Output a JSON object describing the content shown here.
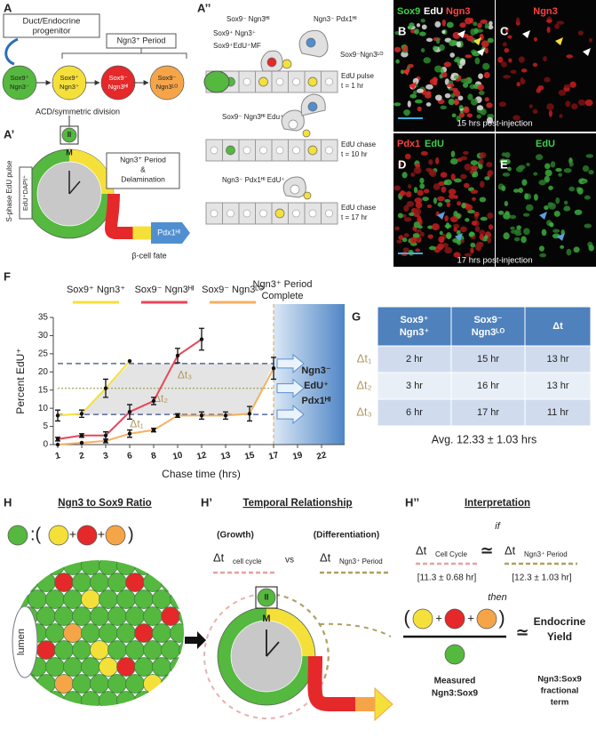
{
  "panel_labels": {
    "A": "A",
    "A1": "A’",
    "A2": "A’’",
    "B": "B",
    "C": "C",
    "D": "D",
    "E": "E",
    "F": "F",
    "G": "G",
    "H": "H",
    "H1": "H’",
    "H2": "H’’"
  },
  "panel_A": {
    "progenitor": [
      "Duct/Endocrine",
      "progenitor"
    ],
    "period": "Ngn3⁺ Period",
    "cells": [
      [
        "Sox9⁺",
        "Ngn3⁻"
      ],
      [
        "Sox9⁺",
        "Ngn3⁺"
      ],
      [
        "Sox9⁻",
        "Ngn3ᴴᴵ"
      ],
      [
        "Sox9⁻",
        "Ngn3ᴸᴼ"
      ]
    ]
  },
  "panel_A1": {
    "division": "ACD/symmetric division",
    "phase_II": "II",
    "phase_M": "M",
    "pulse": "S-phase EdU pulse",
    "stain": "EdU⁺DAPI⁺",
    "box": [
      "Ngn3⁺ Period",
      "&",
      "Delamination"
    ],
    "fate_marker": "Pdx1ᴴᴵ",
    "fate": "β-cell fate"
  },
  "panel_A2": {
    "labels": [
      "Sox9⁻ Ngn3ᴴᴵ",
      "Ngn3⁻ Pdx1ᴴᴵ",
      "Sox9⁺ Ngn3⁺",
      "Sox9⁺EdU⁺MF",
      "Sox9⁻Ngn3ᴸᴼ",
      "Sox9⁻ Ngn3ᴴᴵ Edu⁺",
      "Ngn3⁻ Pdx1ᴴᴵ EdU⁺"
    ],
    "rows": [
      [
        "EdU pulse",
        "t = 1 hr"
      ],
      [
        "EdU chase",
        "t = 10 hr"
      ],
      [
        "EdU chase",
        "t = 17 hr"
      ]
    ]
  },
  "panel_B": {
    "stains": [
      "Sox9",
      "EdU",
      "Ngn3"
    ],
    "time": "15 hrs post-injection"
  },
  "panel_C": {
    "stains": [
      "Ngn3"
    ]
  },
  "panel_D": {
    "stains": [
      "Pdx1",
      "EdU"
    ],
    "time": "17 hrs post-injection"
  },
  "panel_E": {
    "stains": [
      "EdU"
    ]
  },
  "chart_data": {
    "type": "line",
    "x_label": "Chase time (hrs)",
    "y_label": "Percent EdU⁺",
    "categories": [
      "1",
      "2",
      "3",
      "6",
      "8",
      "10",
      "12",
      "13",
      "15",
      "17",
      "19",
      "22"
    ],
    "ylim": [
      0,
      35
    ],
    "yticks": [
      0,
      5,
      10,
      15,
      20,
      25,
      30,
      35
    ],
    "series": [
      {
        "name": "Sox9⁺ Ngn3⁺",
        "color": "#f5e03a",
        "values": [
          8,
          8.5,
          15.5,
          23,
          null,
          null,
          null,
          null,
          null,
          null,
          null,
          null
        ],
        "errors": [
          1.5,
          1,
          2.5,
          null,
          null,
          null,
          null,
          null,
          null,
          null,
          null,
          null
        ]
      },
      {
        "name": "Sox9⁻ Ngn3ᴴᴵ",
        "color": "#e8465a",
        "values": [
          1.5,
          2.5,
          2.5,
          9,
          12,
          24.5,
          29,
          null,
          null,
          null,
          null,
          null
        ],
        "errors": [
          0.5,
          0.5,
          1,
          2,
          1,
          2,
          3,
          null,
          null,
          null,
          null,
          null
        ]
      },
      {
        "name": "Sox9⁻ Ngn3ᴸᴼ",
        "color": "#f5b060",
        "values": [
          0,
          0.5,
          1,
          3,
          4,
          8,
          8,
          8,
          8.5,
          21,
          null,
          null
        ],
        "errors": [
          null,
          null,
          0.5,
          1,
          0.5,
          0.5,
          1,
          1,
          2,
          3,
          null,
          null
        ]
      }
    ],
    "reference_lines": [
      {
        "value": 22.3,
        "color": "#3a4a8a"
      },
      {
        "value": 15.5,
        "color": "#9a9a50"
      },
      {
        "value": 8.3,
        "color": "#3a4a8a"
      }
    ],
    "annotations": [
      "Δt₃",
      "Δt₂",
      "Δt₁"
    ],
    "period_complete": {
      "text": [
        "Ngn3⁺ Period",
        "Complete"
      ],
      "x": "17",
      "outcome": [
        "Ngn3⁻",
        "EdU⁺",
        "Pdx1ᴴᴵ"
      ]
    }
  },
  "table": {
    "header": [
      [
        "Sox9⁺",
        "Ngn3⁺"
      ],
      [
        "Sox9⁻",
        "Ngn3ᴸᴼ"
      ],
      [
        "Δt"
      ]
    ],
    "rows": [
      [
        "Δt₁",
        "2 hr",
        "15 hr",
        "13 hr"
      ],
      [
        "Δt₂",
        "3 hr",
        "16 hr",
        "13 hr"
      ],
      [
        "Δt₃",
        "6 hr",
        "17 hr",
        "11 hr"
      ]
    ],
    "average": "Avg. 12.33 ± 1.03 hrs"
  },
  "panel_H": {
    "title": "Ngn3 to Sox9 Ratio",
    "symbols": [
      ":(",
      "+",
      "+",
      ")"
    ],
    "lumen": "lumen"
  },
  "panel_H1": {
    "title": "Temporal Relationship",
    "growth": "(Growth)",
    "differentiation": "(Differentiation)",
    "delta": [
      "Δt",
      "Δt"
    ],
    "cycle": "cell cycle",
    "vs": "vs",
    "period": "Ngn3⁺ Period",
    "phase_II": "II",
    "phase_M": "M"
  },
  "panel_H2": {
    "title": "Interpretation",
    "if": "if",
    "delta": [
      "Δt",
      "Δt"
    ],
    "cycle": "Cell Cycle",
    "approx": [
      "≃",
      "≃"
    ],
    "period": "Ngn3⁺ Period",
    "cycle_value": "[11.3 ± 0.68 hr]",
    "period_value": "[12.3 ± 1.03 hr]",
    "then": "then",
    "symbols": [
      "(",
      "+",
      "+",
      ")"
    ],
    "yield": [
      "Endocrine",
      "Yield"
    ],
    "measured": [
      "Measured",
      "Ngn3:Sox9"
    ],
    "term": [
      "Ngn3:Sox9",
      "fractional",
      "term"
    ]
  }
}
